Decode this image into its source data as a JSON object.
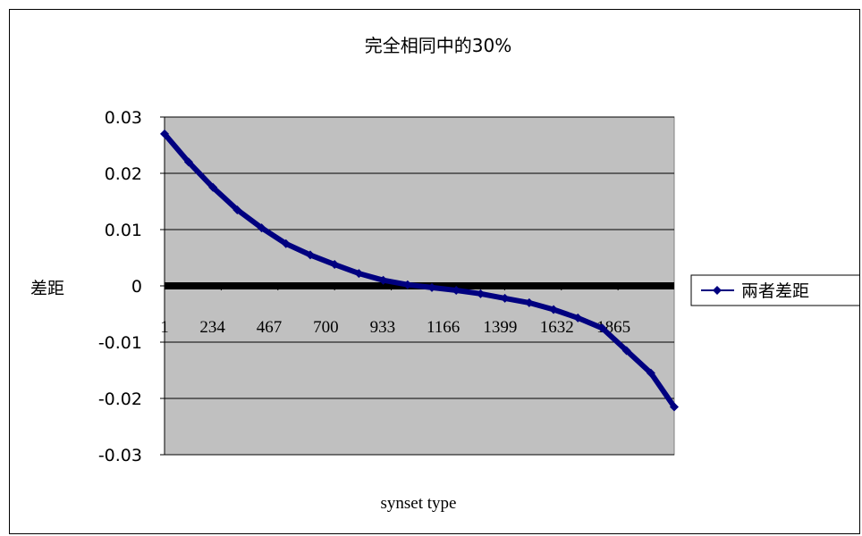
{
  "chart_data": {
    "type": "line",
    "title": "完全相同中的30%",
    "xlabel": "synset type",
    "ylabel": "差距",
    "x_tick_labels": [
      "1",
      "234",
      "467",
      "700",
      "933",
      "1166",
      "1399",
      "1632",
      "1865"
    ],
    "y_tick_labels": [
      "0.03",
      "0.02",
      "0.01",
      "0",
      "-0.01",
      "-0.02",
      "-0.03"
    ],
    "ylim": [
      -0.03,
      0.03
    ],
    "xlim": [
      1,
      2096
    ],
    "grid": true,
    "plot_background": "#C0C0C0",
    "legend_position": "right",
    "series": [
      {
        "name": "兩者差距",
        "color": "#000080",
        "marker": "diamond",
        "x": [
          1,
          100,
          200,
          300,
          400,
          500,
          600,
          700,
          800,
          900,
          1000,
          1100,
          1200,
          1300,
          1400,
          1500,
          1600,
          1700,
          1800,
          1900,
          2000,
          2096
        ],
        "y": [
          0.027,
          0.022,
          0.0175,
          0.0135,
          0.0103,
          0.0075,
          0.0055,
          0.0038,
          0.0022,
          0.001,
          0.0002,
          -0.0003,
          -0.0008,
          -0.0014,
          -0.0022,
          -0.003,
          -0.0042,
          -0.0057,
          -0.0075,
          -0.0115,
          -0.0155,
          -0.0215
        ]
      }
    ]
  }
}
